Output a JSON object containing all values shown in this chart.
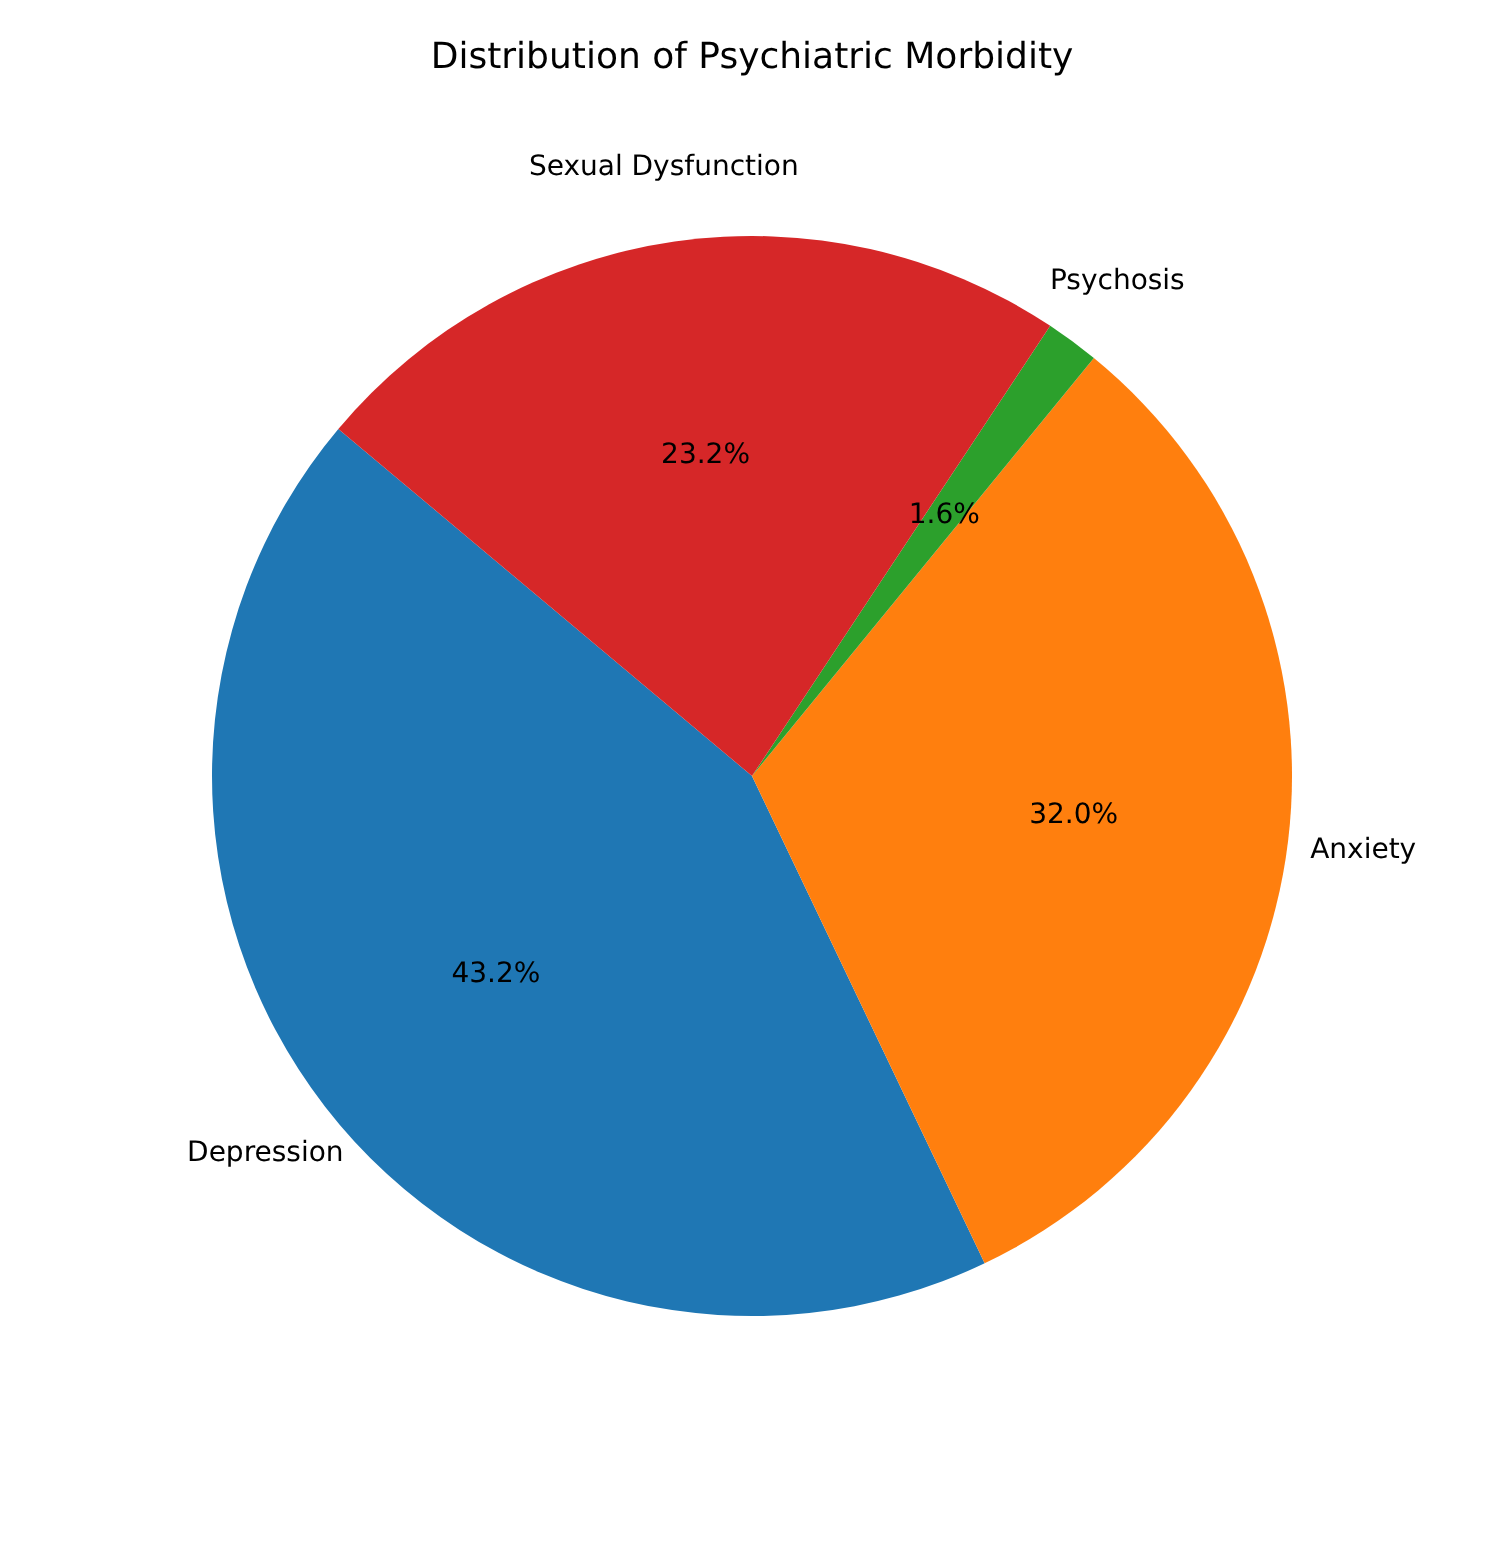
{
  "chart_data": {
    "type": "pie",
    "title": "Distribution of Psychiatric Morbidity",
    "categories": [
      "Depression",
      "Anxiety",
      "Psychosis",
      "Sexual Dysfunction"
    ],
    "values": [
      43.2,
      32.0,
      1.6,
      23.2
    ],
    "value_labels": [
      "43.2%",
      "32.0%",
      "1.6%",
      "23.2%"
    ],
    "colors": [
      "#1f77b4",
      "#ff7f0e",
      "#2ca02c",
      "#d62728"
    ],
    "legend": false
  }
}
